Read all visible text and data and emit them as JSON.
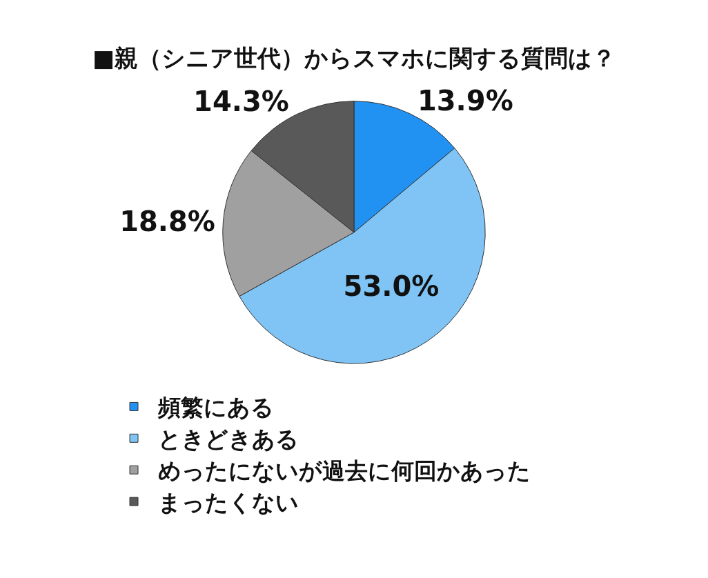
{
  "chart_data": {
    "type": "pie",
    "title": "■親（シニア世代）からスマホに関する質問は？",
    "categories": [
      "頻繁にある",
      "ときどきある",
      "めったにないが過去に何回かあった",
      "まったくない"
    ],
    "values": [
      13.9,
      53.0,
      18.8,
      14.3
    ],
    "value_labels": [
      "13.9%",
      "53.0%",
      "18.8%",
      "14.3%"
    ],
    "colors": [
      "#2192f2",
      "#7fc4f4",
      "#a0a0a0",
      "#595959"
    ],
    "legend": "bottom"
  }
}
